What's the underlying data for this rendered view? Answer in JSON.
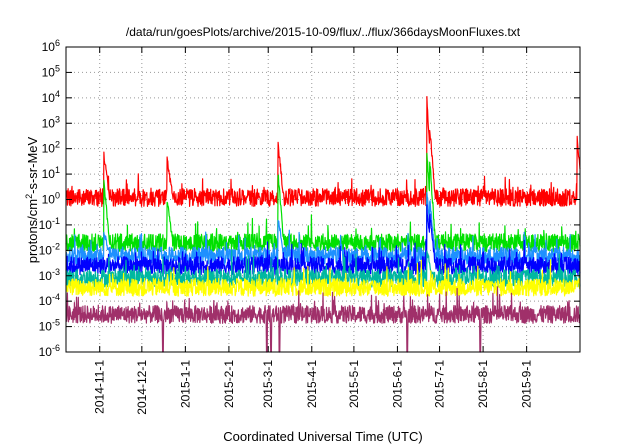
{
  "chart_data": {
    "type": "line",
    "title": "/data/run/goesPlots/archive/2015-10-09/flux/../flux/366daysMoonFluxes.txt",
    "xlabel": "Coordinated Universal Time (UTC)",
    "ylabel_parts": {
      "base": "protons/cm",
      "sup": "2",
      "rest": "-s-sr-MeV"
    },
    "yscale": "log",
    "ylim": [
      1e-06,
      1000000.0
    ],
    "xlim": [
      "2014-10-08",
      "2015-10-09"
    ],
    "y_ticks": [
      {
        "value": 1e-06,
        "base": "10",
        "exp": "-6"
      },
      {
        "value": 1e-05,
        "base": "10",
        "exp": "-5"
      },
      {
        "value": 0.0001,
        "base": "10",
        "exp": "-4"
      },
      {
        "value": 0.001,
        "base": "10",
        "exp": "-3"
      },
      {
        "value": 0.01,
        "base": "10",
        "exp": "-2"
      },
      {
        "value": 0.1,
        "base": "10",
        "exp": "-1"
      },
      {
        "value": 1.0,
        "base": "10",
        "exp": "0"
      },
      {
        "value": 10.0,
        "base": "10",
        "exp": "1"
      },
      {
        "value": 100.0,
        "base": "10",
        "exp": "2"
      },
      {
        "value": 1000.0,
        "base": "10",
        "exp": "3"
      },
      {
        "value": 10000.0,
        "base": "10",
        "exp": "4"
      },
      {
        "value": 100000.0,
        "base": "10",
        "exp": "5"
      },
      {
        "value": 1000000.0,
        "base": "10",
        "exp": "6"
      }
    ],
    "x_ticks": [
      "2014-11-1",
      "2014-12-1",
      "2015-1-1",
      "2015-2-1",
      "2015-3-1",
      "2015-4-1",
      "2015-5-1",
      "2015-6-1",
      "2015-7-1",
      "2015-8-1",
      "2015-9-1"
    ],
    "x_tick_dates": [
      "2014-11-01",
      "2014-12-01",
      "2015-01-01",
      "2015-02-01",
      "2015-03-01",
      "2015-04-01",
      "2015-05-01",
      "2015-06-01",
      "2015-07-01",
      "2015-08-01",
      "2015-09-01"
    ],
    "grid": true,
    "legend": "none",
    "series": [
      {
        "color": "#ff0000",
        "baseline": 1.2,
        "spikes": [
          [
            "2014-11-04",
            60
          ],
          [
            "2014-12-19",
            40
          ],
          [
            "2015-03-08",
            150
          ],
          [
            "2015-06-22",
            9000
          ],
          [
            "2015-06-24",
            700
          ],
          [
            "2015-10-07",
            250
          ]
        ]
      },
      {
        "color": "#00e000",
        "baseline": 0.02,
        "spikes": [
          [
            "2014-11-04",
            5
          ],
          [
            "2014-12-19",
            1
          ],
          [
            "2015-03-08",
            10
          ],
          [
            "2015-06-22",
            70
          ],
          [
            "2015-06-24",
            40
          ]
        ]
      },
      {
        "color": "#1e90ff",
        "baseline": 0.006,
        "spikes": [
          [
            "2014-11-04",
            0.05
          ],
          [
            "2015-03-08",
            0.2
          ],
          [
            "2015-06-22",
            2
          ],
          [
            "2015-06-24",
            1
          ]
        ]
      },
      {
        "color": "#0000ff",
        "baseline": 0.0025,
        "spikes": [
          [
            "2015-06-22",
            0.5
          ],
          [
            "2015-06-24",
            0.3
          ]
        ]
      },
      {
        "color": "#00b8a0",
        "baseline": 0.0008,
        "spikes": [
          [
            "2015-06-22",
            0.01
          ]
        ]
      },
      {
        "color": "#ffff00",
        "baseline": 0.00035,
        "spikes": []
      },
      {
        "color": "#a0306a",
        "baseline": 3e-05,
        "dips": [
          [
            "2014-12-16",
            1e-06
          ],
          [
            "2015-02-28",
            1e-06
          ],
          [
            "2015-03-03",
            1e-06
          ],
          [
            "2015-03-09",
            1e-06
          ],
          [
            "2015-06-08",
            1e-06
          ],
          [
            "2015-07-30",
            1e-06
          ]
        ],
        "spikes": []
      }
    ]
  }
}
